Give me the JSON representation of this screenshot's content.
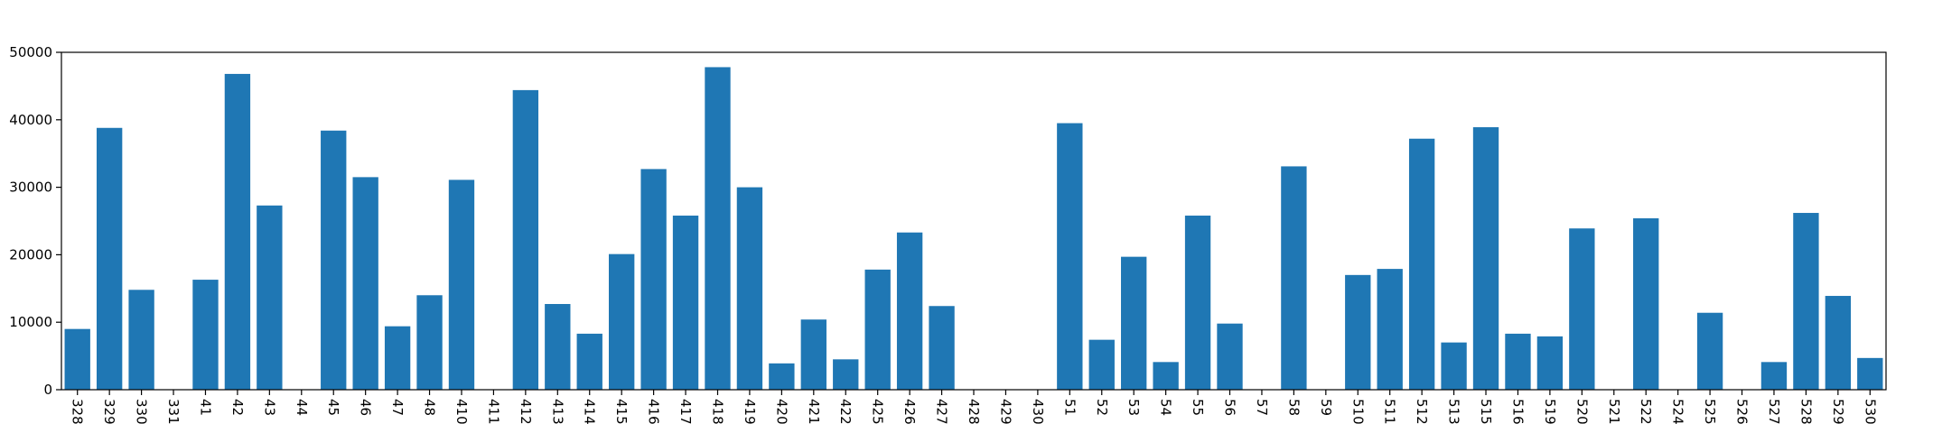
{
  "colors": {
    "bar": "#1f77b4",
    "axis": "#000000",
    "background": "#ffffff"
  },
  "chart_data": {
    "type": "bar",
    "title": "",
    "xlabel": "",
    "ylabel": "",
    "grid": false,
    "ylim": [
      0,
      50000
    ],
    "yticks": [
      0,
      10000,
      20000,
      30000,
      40000,
      50000
    ],
    "categories": [
      "328",
      "329",
      "330",
      "331",
      "41",
      "42",
      "43",
      "44",
      "45",
      "46",
      "47",
      "48",
      "410",
      "411",
      "412",
      "413",
      "414",
      "415",
      "416",
      "417",
      "418",
      "419",
      "420",
      "421",
      "422",
      "425",
      "426",
      "427",
      "428",
      "429",
      "430",
      "51",
      "52",
      "53",
      "54",
      "55",
      "56",
      "57",
      "58",
      "59",
      "510",
      "511",
      "512",
      "513",
      "515",
      "516",
      "519",
      "520",
      "521",
      "522",
      "524",
      "525",
      "526",
      "527",
      "528",
      "529",
      "530"
    ],
    "values": [
      9000,
      38800,
      14800,
      0,
      16300,
      46800,
      27300,
      0,
      38400,
      31500,
      9400,
      14000,
      31100,
      0,
      44400,
      12700,
      8300,
      20100,
      32700,
      25800,
      47800,
      30000,
      3900,
      10400,
      4500,
      17800,
      23300,
      12400,
      0,
      0,
      0,
      39500,
      7400,
      19700,
      4100,
      25800,
      9800,
      0,
      33100,
      0,
      17000,
      17900,
      37200,
      7000,
      38900,
      8300,
      7900,
      23900,
      0,
      25400,
      0,
      11400,
      0,
      4100,
      26200,
      13900,
      4700
    ]
  }
}
